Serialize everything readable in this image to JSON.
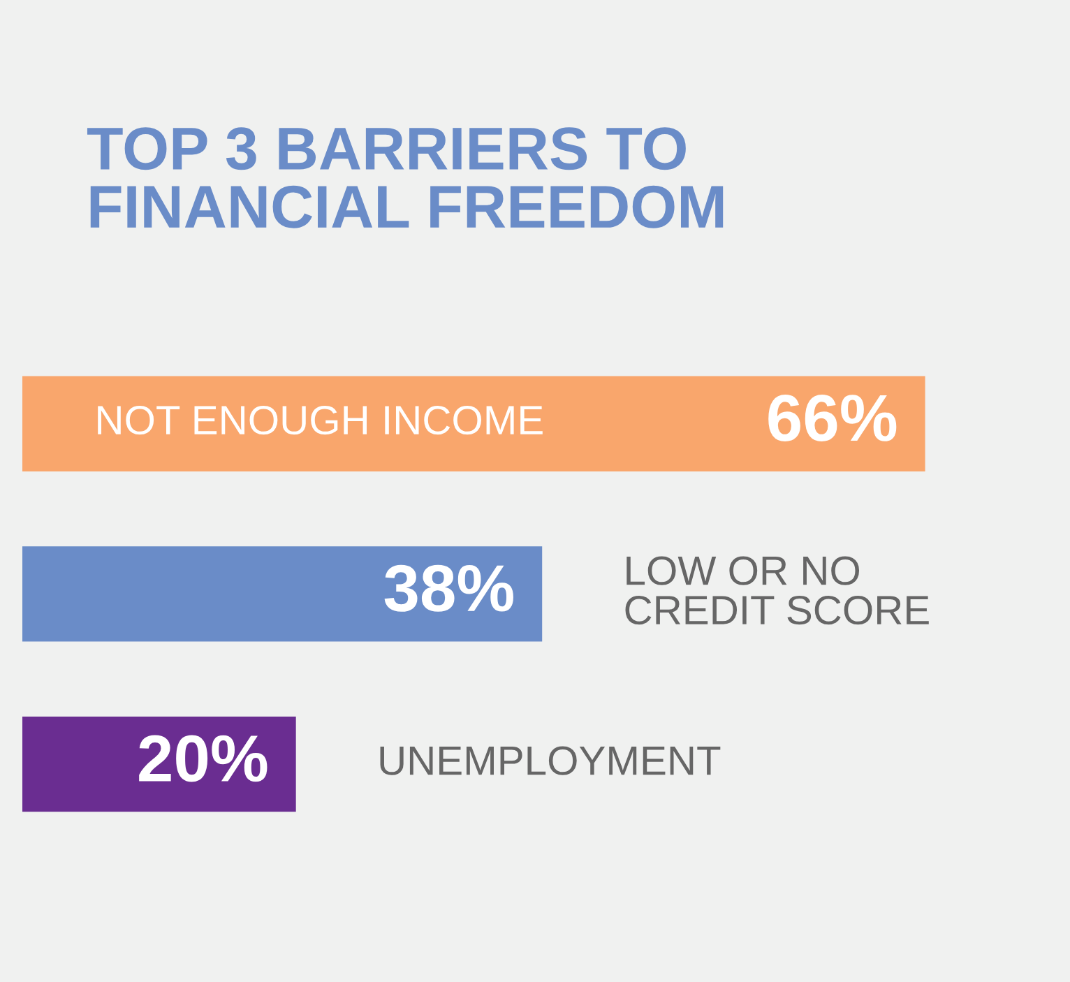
{
  "chart_data": {
    "type": "bar",
    "orientation": "horizontal",
    "title": "TOP 3 BARRIERS TO\nFINANCIAL FREEDOM",
    "categories": [
      "NOT ENOUGH INCOME",
      "LOW OR NO\nCREDIT SCORE",
      "UNEMPLOYMENT"
    ],
    "values": [
      66,
      38,
      20
    ],
    "value_labels": [
      "66%",
      "38%",
      "20%"
    ],
    "colors": [
      "#f9a66c",
      "#6a8cc8",
      "#6a2d91"
    ]
  }
}
